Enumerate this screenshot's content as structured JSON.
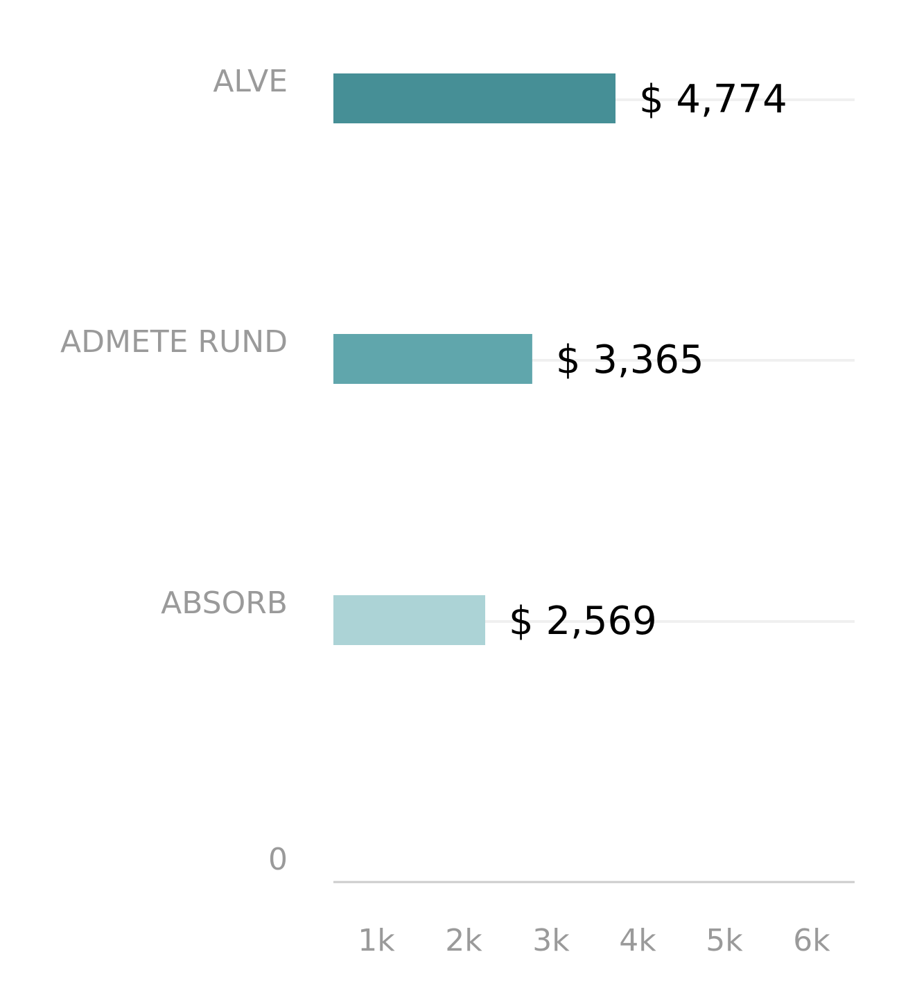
{
  "chart_data": {
    "type": "bar",
    "orientation": "horizontal",
    "categories": [
      "ALVE",
      "ADMETE RUND",
      "ABSORB",
      "0"
    ],
    "values": [
      4774,
      3365,
      2569,
      null
    ],
    "value_labels": [
      "$ 4,774",
      "$ 3,365",
      "$ 2,569",
      ""
    ],
    "bar_colors": [
      "#468f96",
      "#60a6ac",
      "#acd3d6",
      null
    ],
    "x_ticks": [
      "1k",
      "2k",
      "3k",
      "4k",
      "5k",
      "6k"
    ],
    "xlim": [
      0,
      6000
    ],
    "title": "",
    "xlabel": "",
    "ylabel": "",
    "grid": false,
    "legend": "none"
  }
}
